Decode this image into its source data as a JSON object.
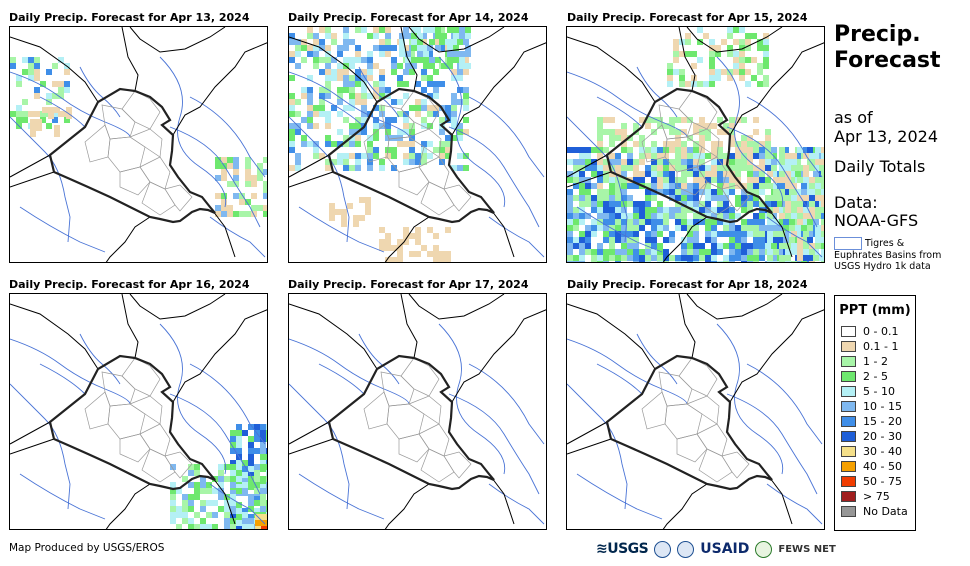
{
  "panels": [
    {
      "title": "Daily Precip. Forecast for Apr 13, 2024",
      "rain": "apr13"
    },
    {
      "title": "Daily Precip. Forecast for Apr 14, 2024",
      "rain": "apr14"
    },
    {
      "title": "Daily Precip. Forecast for Apr 15, 2024",
      "rain": "apr15"
    },
    {
      "title": "Daily Precip. Forecast for Apr 16, 2024",
      "rain": "apr16"
    },
    {
      "title": "Daily Precip. Forecast for Apr 17, 2024",
      "rain": "none"
    },
    {
      "title": "Daily Precip. Forecast for Apr 18, 2024",
      "rain": "none"
    }
  ],
  "side": {
    "title_line1": "Precip.",
    "title_line2": "Forecast",
    "as_of_label": "as of",
    "as_of_date": "Apr 13, 2024",
    "totals": "Daily Totals",
    "data_label": "Data:",
    "data_source": "NOAA-GFS",
    "basin_line1": "Tigres &",
    "basin_line2": "Euphrates Basins from",
    "basin_line3": "USGS Hydro 1k data"
  },
  "legend": {
    "title": "PPT (mm)",
    "items": [
      {
        "label": "0 - 0.1",
        "color": "#ffffff"
      },
      {
        "label": "0.1 - 1",
        "color": "#efd7b0"
      },
      {
        "label": "1 - 2",
        "color": "#a8f5a8"
      },
      {
        "label": "2 - 5",
        "color": "#6ee86e"
      },
      {
        "label": "5 - 10",
        "color": "#b4f0f5"
      },
      {
        "label": "10 - 15",
        "color": "#7fb8f0"
      },
      {
        "label": "15 - 20",
        "color": "#3f8ee8"
      },
      {
        "label": "20 - 30",
        "color": "#1f5fd8"
      },
      {
        "label": "30 - 40",
        "color": "#f5e08a"
      },
      {
        "label": "40 - 50",
        "color": "#f5a000"
      },
      {
        "label": "50 - 75",
        "color": "#f03c00"
      },
      {
        "label": "> 75",
        "color": "#a01e1e"
      },
      {
        "label": "No Data",
        "color": "#969696"
      }
    ]
  },
  "footer": {
    "credit": "Map Produced by USGS/EROS"
  },
  "logos": {
    "usgs": "≋USGS",
    "usaid": "USAID",
    "fews": "FEWS NET"
  }
}
